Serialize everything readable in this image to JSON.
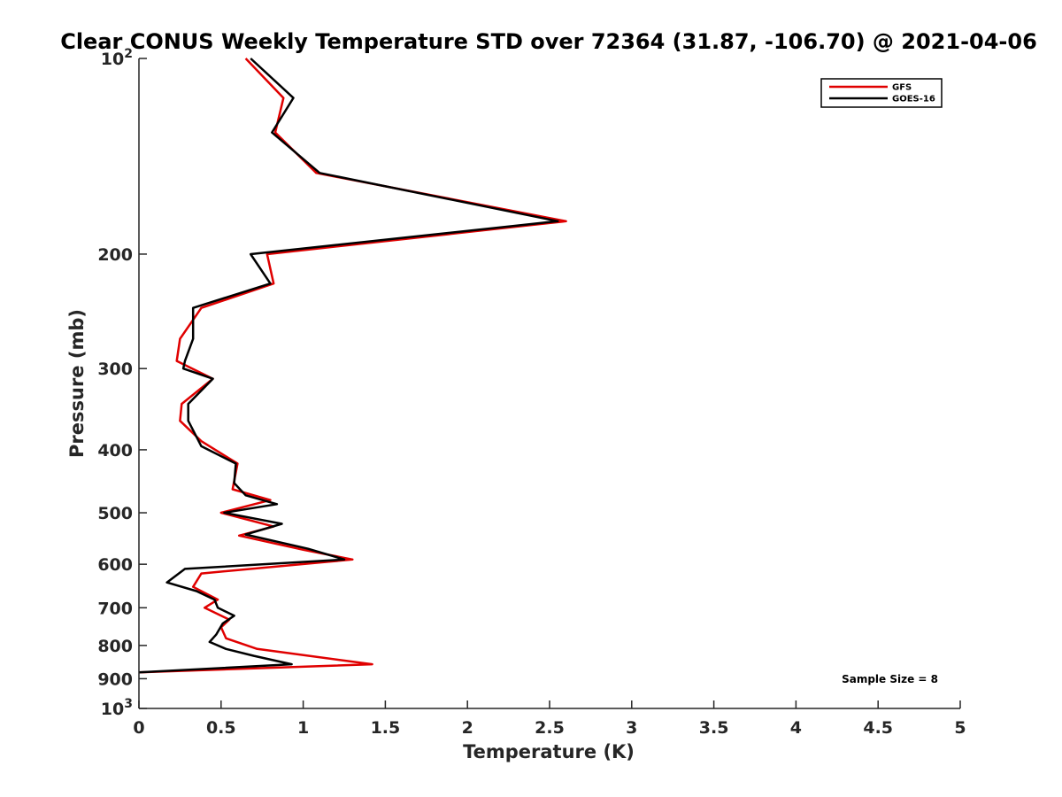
{
  "chart_data": {
    "type": "line",
    "title": "Clear CONUS Weekly Temperature STD over 72364 (31.87, -106.70) @ 2021-04-06",
    "xlabel": "Temperature (K)",
    "ylabel": "Pressure (mb)",
    "xlim": [
      0,
      5
    ],
    "ylim": [
      100,
      1000
    ],
    "y_scale": "log",
    "y_reversed": true,
    "x_ticks": [
      {
        "value": 0,
        "label": "0"
      },
      {
        "value": 0.5,
        "label": "0.5"
      },
      {
        "value": 1,
        "label": "1"
      },
      {
        "value": 1.5,
        "label": "1.5"
      },
      {
        "value": 2,
        "label": "2"
      },
      {
        "value": 2.5,
        "label": "2.5"
      },
      {
        "value": 3,
        "label": "3"
      },
      {
        "value": 3.5,
        "label": "3.5"
      },
      {
        "value": 4,
        "label": "4"
      },
      {
        "value": 4.5,
        "label": "4.5"
      },
      {
        "value": 5,
        "label": "5"
      }
    ],
    "y_ticks": [
      {
        "value": 100,
        "label": "10",
        "sup": "2"
      },
      {
        "value": 200,
        "label": "200"
      },
      {
        "value": 300,
        "label": "300"
      },
      {
        "value": 400,
        "label": "400"
      },
      {
        "value": 500,
        "label": "500"
      },
      {
        "value": 600,
        "label": "600"
      },
      {
        "value": 700,
        "label": "700"
      },
      {
        "value": 800,
        "label": "800"
      },
      {
        "value": 900,
        "label": "900"
      },
      {
        "value": 1000,
        "label": "10",
        "sup": "3"
      }
    ],
    "legend_position": "top-right",
    "grid": false,
    "annotation": "Sample Size = 8",
    "series": [
      {
        "name": "GFS",
        "color": "#e00000",
        "points": [
          [
            0.65,
            100
          ],
          [
            0.88,
            115
          ],
          [
            0.83,
            130
          ],
          [
            1.08,
            150
          ],
          [
            2.6,
            178
          ],
          [
            0.78,
            200
          ],
          [
            0.82,
            222
          ],
          [
            0.38,
            242
          ],
          [
            0.25,
            270
          ],
          [
            0.23,
            292
          ],
          [
            0.45,
            311
          ],
          [
            0.26,
            340
          ],
          [
            0.25,
            361
          ],
          [
            0.38,
            388
          ],
          [
            0.6,
            420
          ],
          [
            0.57,
            460
          ],
          [
            0.8,
            478
          ],
          [
            0.5,
            500
          ],
          [
            0.82,
            525
          ],
          [
            0.61,
            542
          ],
          [
            1.0,
            570
          ],
          [
            1.3,
            590
          ],
          [
            0.38,
            620
          ],
          [
            0.33,
            650
          ],
          [
            0.48,
            680
          ],
          [
            0.4,
            700
          ],
          [
            0.55,
            730
          ],
          [
            0.5,
            750
          ],
          [
            0.53,
            780
          ],
          [
            0.72,
            810
          ],
          [
            1.42,
            855
          ],
          [
            0.0,
            880
          ]
        ]
      },
      {
        "name": "GOES-16",
        "color": "#000000",
        "points": [
          [
            0.68,
            100
          ],
          [
            0.94,
            115
          ],
          [
            0.81,
            130
          ],
          [
            1.1,
            150
          ],
          [
            2.55,
            178
          ],
          [
            0.68,
            200
          ],
          [
            0.8,
            222
          ],
          [
            0.33,
            242
          ],
          [
            0.33,
            270
          ],
          [
            0.28,
            292
          ],
          [
            0.27,
            300
          ],
          [
            0.45,
            311
          ],
          [
            0.3,
            340
          ],
          [
            0.3,
            361
          ],
          [
            0.38,
            395
          ],
          [
            0.59,
            420
          ],
          [
            0.58,
            450
          ],
          [
            0.65,
            470
          ],
          [
            0.84,
            485
          ],
          [
            0.52,
            500
          ],
          [
            0.87,
            520
          ],
          [
            0.65,
            540
          ],
          [
            1.03,
            568
          ],
          [
            1.25,
            590
          ],
          [
            0.28,
            610
          ],
          [
            0.17,
            640
          ],
          [
            0.35,
            660
          ],
          [
            0.46,
            680
          ],
          [
            0.48,
            700
          ],
          [
            0.58,
            720
          ],
          [
            0.51,
            740
          ],
          [
            0.47,
            770
          ],
          [
            0.43,
            790
          ],
          [
            0.53,
            810
          ],
          [
            0.7,
            830
          ],
          [
            0.93,
            855
          ],
          [
            0.0,
            880
          ]
        ]
      }
    ]
  }
}
